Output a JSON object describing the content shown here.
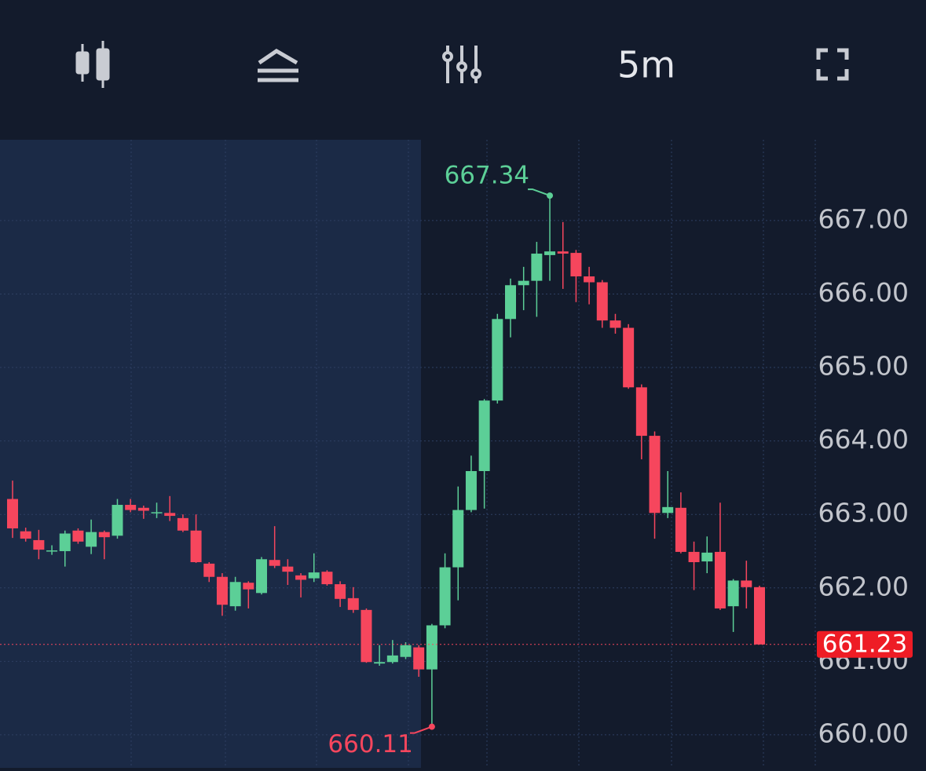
{
  "toolbar": {
    "interval": "5m"
  },
  "chart_data": {
    "type": "candlestick",
    "open": [
      663.21,
      662.77,
      662.65,
      662.5,
      662.5,
      662.78,
      662.56,
      662.76,
      662.71,
      663.13,
      663.09,
      663.02,
      663.02,
      662.95,
      662.78,
      662.33,
      662.15,
      661.75,
      662.07,
      661.93,
      662.38,
      662.29,
      662.17,
      662.13,
      662.22,
      662.05,
      661.86,
      661.7,
      660.97,
      660.99,
      661.06,
      661.19,
      660.89,
      661.49,
      662.28,
      663.06,
      663.59,
      664.55,
      665.66,
      666.12,
      666.18,
      666.53,
      666.58,
      666.56,
      666.24,
      666.16,
      665.64,
      665.54,
      664.73,
      664.07,
      663.02,
      663.09,
      662.49,
      662.36,
      662.49,
      661.75,
      662.1,
      662.01
    ],
    "high": [
      663.46,
      662.82,
      662.79,
      662.58,
      662.78,
      662.81,
      662.93,
      662.78,
      663.21,
      663.21,
      663.12,
      663.16,
      663.25,
      663.0,
      663.0,
      662.35,
      662.2,
      662.15,
      662.09,
      662.42,
      662.84,
      662.39,
      662.2,
      662.47,
      662.24,
      662.09,
      662.01,
      661.72,
      661.22,
      661.29,
      661.26,
      661.22,
      661.51,
      662.47,
      663.38,
      663.8,
      664.57,
      665.73,
      666.21,
      666.37,
      666.71,
      667.34,
      666.98,
      666.6,
      666.37,
      666.19,
      665.73,
      665.59,
      664.77,
      664.13,
      663.59,
      663.3,
      662.63,
      662.7,
      663.16,
      662.12,
      662.37,
      662.03
    ],
    "low": [
      662.68,
      662.63,
      662.39,
      662.45,
      662.29,
      662.6,
      662.46,
      662.39,
      662.67,
      663.03,
      662.94,
      662.95,
      662.91,
      662.76,
      662.34,
      662.08,
      661.62,
      661.69,
      661.72,
      661.91,
      662.27,
      662.04,
      661.87,
      662.08,
      662.03,
      661.74,
      661.66,
      660.98,
      660.94,
      660.97,
      661.03,
      660.79,
      660.11,
      661.45,
      661.83,
      663.03,
      663.08,
      664.51,
      665.41,
      665.78,
      665.69,
      666.18,
      666.07,
      665.89,
      665.86,
      665.54,
      665.46,
      664.71,
      663.75,
      662.67,
      662.95,
      662.47,
      661.97,
      662.2,
      661.7,
      661.4,
      661.72,
      661.23
    ],
    "close": [
      662.81,
      662.67,
      662.52,
      662.51,
      662.74,
      662.63,
      662.76,
      662.69,
      663.13,
      663.06,
      663.05,
      663.03,
      662.98,
      662.78,
      662.35,
      662.15,
      661.77,
      662.08,
      661.98,
      662.39,
      662.3,
      662.22,
      662.11,
      662.21,
      662.05,
      661.85,
      661.7,
      660.99,
      660.99,
      661.08,
      661.22,
      660.89,
      661.49,
      662.28,
      663.06,
      663.59,
      664.55,
      665.66,
      666.12,
      666.18,
      666.55,
      666.58,
      666.55,
      666.24,
      666.16,
      665.64,
      665.54,
      664.73,
      664.07,
      663.02,
      663.1,
      662.49,
      662.35,
      662.48,
      661.72,
      662.1,
      662.01,
      661.23
    ],
    "up_color": "#5ccf97",
    "down_color": "#f6465d",
    "ylim": [
      659.55,
      668.1
    ],
    "yticks": [
      {
        "value": 660,
        "label": "660.00"
      },
      {
        "value": 661,
        "label": "661.00"
      },
      {
        "value": 662,
        "label": "662.00"
      },
      {
        "value": 663,
        "label": "663.00"
      },
      {
        "value": 664,
        "label": "664.00"
      },
      {
        "value": 665,
        "label": "665.00"
      },
      {
        "value": 666,
        "label": "666.00"
      },
      {
        "value": 667,
        "label": "667.00"
      }
    ],
    "grid": true
  }
}
